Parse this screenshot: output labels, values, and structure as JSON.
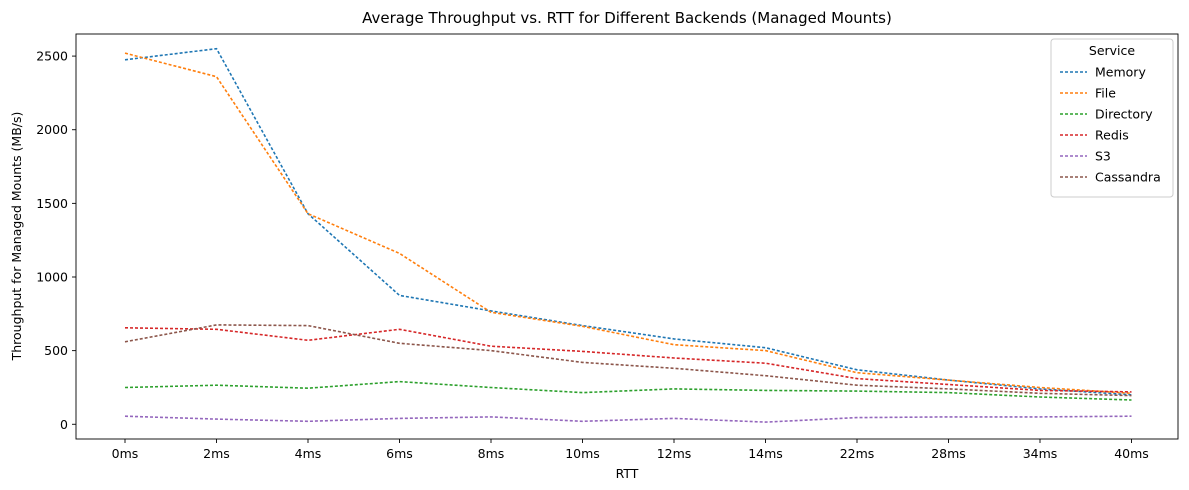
{
  "chart_data": {
    "type": "line",
    "title": "Average Throughput vs. RTT for Different Backends (Managed Mounts)",
    "xlabel": "RTT",
    "ylabel": "Throughput for Managed Mounts (MB/s)",
    "categories": [
      "0ms",
      "2ms",
      "4ms",
      "6ms",
      "8ms",
      "10ms",
      "12ms",
      "14ms",
      "22ms",
      "28ms",
      "34ms",
      "40ms"
    ],
    "yticks": [
      0,
      500,
      1000,
      1500,
      2000,
      2500
    ],
    "ylim": [
      -100,
      2650
    ],
    "grid": false,
    "line_style": "dashed",
    "legend": {
      "title": "Service",
      "position": "top-right"
    },
    "series": [
      {
        "name": "Memory",
        "color": "#1f77b4",
        "values": [
          2475,
          2550,
          1430,
          875,
          770,
          670,
          580,
          520,
          370,
          300,
          240,
          200
        ]
      },
      {
        "name": "File",
        "color": "#ff7f0e",
        "values": [
          2520,
          2360,
          1430,
          1160,
          760,
          665,
          540,
          500,
          350,
          300,
          250,
          210
        ]
      },
      {
        "name": "Directory",
        "color": "#2ca02c",
        "values": [
          250,
          265,
          245,
          290,
          250,
          215,
          240,
          230,
          225,
          215,
          185,
          165
        ]
      },
      {
        "name": "Redis",
        "color": "#d62728",
        "values": [
          655,
          645,
          570,
          645,
          530,
          495,
          450,
          415,
          310,
          270,
          230,
          220
        ]
      },
      {
        "name": "S3",
        "color": "#9467bd",
        "values": [
          55,
          35,
          20,
          40,
          50,
          20,
          40,
          15,
          45,
          50,
          50,
          55
        ]
      },
      {
        "name": "Cassandra",
        "color": "#8c564b",
        "values": [
          560,
          675,
          670,
          550,
          500,
          420,
          380,
          330,
          265,
          240,
          210,
          195
        ]
      }
    ]
  }
}
